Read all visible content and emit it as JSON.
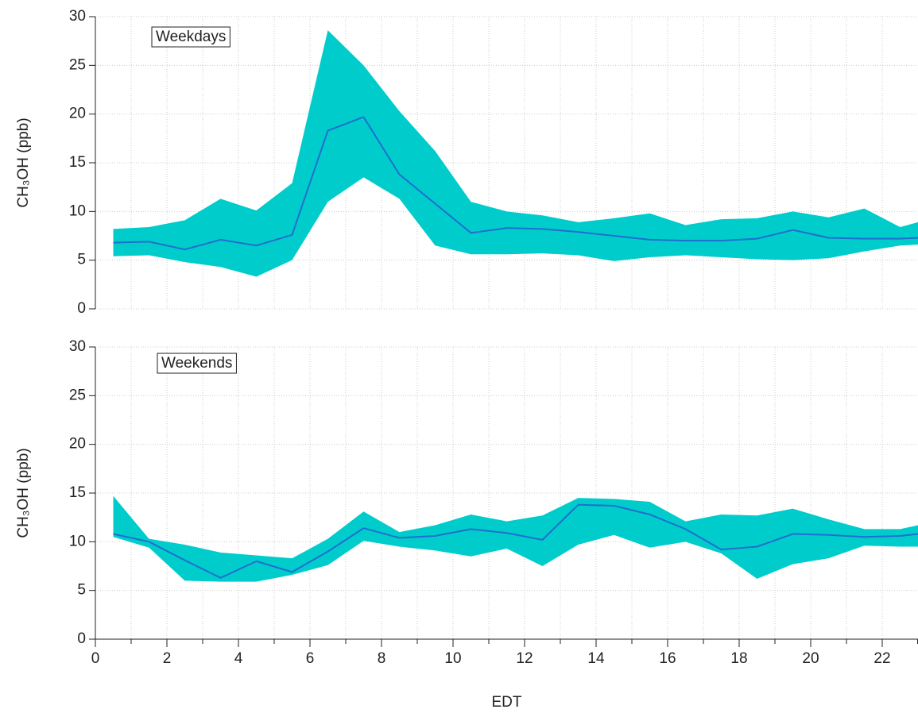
{
  "chart_data": [
    {
      "type": "band",
      "label": "Weekdays",
      "ylabel": "CH₃OH  (ppb)",
      "x": [
        0.5,
        1.5,
        2.5,
        3.5,
        4.5,
        5.5,
        6.5,
        7.5,
        8.5,
        9.5,
        10.5,
        11.5,
        12.5,
        13.5,
        14.5,
        15.5,
        16.5,
        17.5,
        18.5,
        19.5,
        20.5,
        21.5,
        22.5,
        23.5
      ],
      "mean": [
        6.8,
        6.9,
        6.1,
        7.1,
        6.5,
        7.6,
        18.3,
        19.7,
        13.8,
        10.8,
        7.8,
        8.3,
        8.2,
        7.9,
        7.5,
        7.1,
        7.0,
        7.0,
        7.2,
        8.1,
        7.3,
        7.2,
        7.2,
        7.4
      ],
      "upper": [
        8.2,
        8.4,
        9.1,
        11.3,
        10.1,
        12.9,
        28.6,
        25.0,
        20.3,
        16.2,
        11.0,
        10.0,
        9.6,
        8.9,
        9.3,
        9.8,
        8.6,
        9.2,
        9.3,
        10.0,
        9.4,
        10.3,
        8.4,
        9.4
      ],
      "lower": [
        5.4,
        5.5,
        4.8,
        4.3,
        3.3,
        5.0,
        11.0,
        13.5,
        11.3,
        6.5,
        5.6,
        5.6,
        5.7,
        5.5,
        4.9,
        5.3,
        5.5,
        5.3,
        5.1,
        5.0,
        5.2,
        5.9,
        6.5,
        6.7
      ],
      "band_color": "#00cccc",
      "line_color": "#1f6fcf",
      "ylim": [
        0,
        30
      ],
      "yticks": [
        0,
        5,
        10,
        15,
        20,
        25,
        30
      ],
      "grid": true
    },
    {
      "type": "band",
      "label": "Weekends",
      "ylabel": "CH₃OH  (ppb)",
      "xlabel": "EDT",
      "x": [
        0.5,
        1.5,
        2.5,
        3.5,
        4.5,
        5.5,
        6.5,
        7.5,
        8.5,
        9.5,
        10.5,
        11.5,
        12.5,
        13.5,
        14.5,
        15.5,
        16.5,
        17.5,
        18.5,
        19.5,
        20.5,
        21.5,
        22.5,
        23.5
      ],
      "mean": [
        10.8,
        10.0,
        8.1,
        6.3,
        8.0,
        6.9,
        9.0,
        11.4,
        10.4,
        10.6,
        11.3,
        10.9,
        10.2,
        13.8,
        13.7,
        12.8,
        11.3,
        9.2,
        9.5,
        10.8,
        10.7,
        10.5,
        10.6,
        11.0
      ],
      "upper": [
        14.7,
        10.3,
        9.7,
        8.9,
        8.6,
        8.3,
        10.3,
        13.1,
        11.0,
        11.7,
        12.8,
        12.1,
        12.7,
        14.5,
        14.4,
        14.1,
        12.1,
        12.8,
        12.7,
        13.4,
        12.3,
        11.3,
        11.3,
        12.1
      ],
      "lower": [
        10.5,
        9.4,
        6.0,
        5.9,
        5.9,
        6.6,
        7.6,
        10.1,
        9.5,
        9.1,
        8.5,
        9.3,
        7.5,
        9.7,
        10.7,
        9.4,
        10.0,
        8.8,
        6.2,
        7.7,
        8.3,
        9.6,
        9.5,
        9.5
      ],
      "band_color": "#00cccc",
      "line_color": "#1f6fcf",
      "ylim": [
        0,
        30
      ],
      "yticks": [
        0,
        5,
        10,
        15,
        20,
        25,
        30
      ],
      "grid": true,
      "xlim": [
        0,
        23
      ],
      "xticks": [
        0,
        2,
        4,
        6,
        8,
        10,
        12,
        14,
        16,
        18,
        20,
        22
      ],
      "xminorticks": [
        1,
        3,
        5,
        7,
        9,
        11,
        13,
        15,
        17,
        19,
        21,
        23
      ]
    }
  ]
}
